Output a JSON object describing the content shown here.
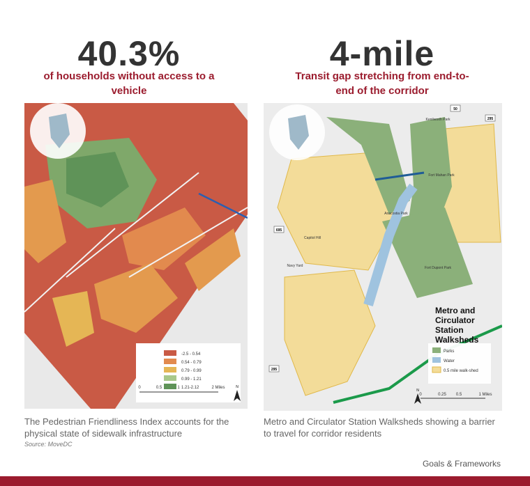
{
  "left": {
    "stat": "40.3%",
    "caption": "of households without access to a vehicle",
    "legend": [
      "-2.5 - 0.54",
      "0.54 - 0.79",
      "0.79 - 0.99",
      "0.99 - 1.21",
      "1.21-2.12"
    ],
    "scale": [
      "0",
      "0.5",
      "1",
      "2 Miles"
    ],
    "north": "N",
    "description": "The Pedestrian Friendliness Index accounts for the physical state of sidewalk infrastructure",
    "source": "Source: MoveDC"
  },
  "right": {
    "stat": "4-mile",
    "caption": "Transit gap stretching from end-to-end of the corridor",
    "map_title": "Metro and Circulator Station Walksheds",
    "legend": [
      "Parks",
      "Water",
      "0.5 mile walk-shed"
    ],
    "scale": [
      "0",
      "0.25",
      "0.5",
      "1 Miles"
    ],
    "north": "N",
    "places": [
      "Fort Dupont Park",
      "Anacostia Park",
      "Kenilworth Park",
      "Fort Mahan Park",
      "Capitol Hill",
      "Navy Yard"
    ],
    "shields": [
      "50",
      "295",
      "695",
      "295"
    ],
    "description": "Metro and Circulator Station Walksheds showing a barrier to travel for corridor residents"
  },
  "footer": "Goals & Frameworks"
}
